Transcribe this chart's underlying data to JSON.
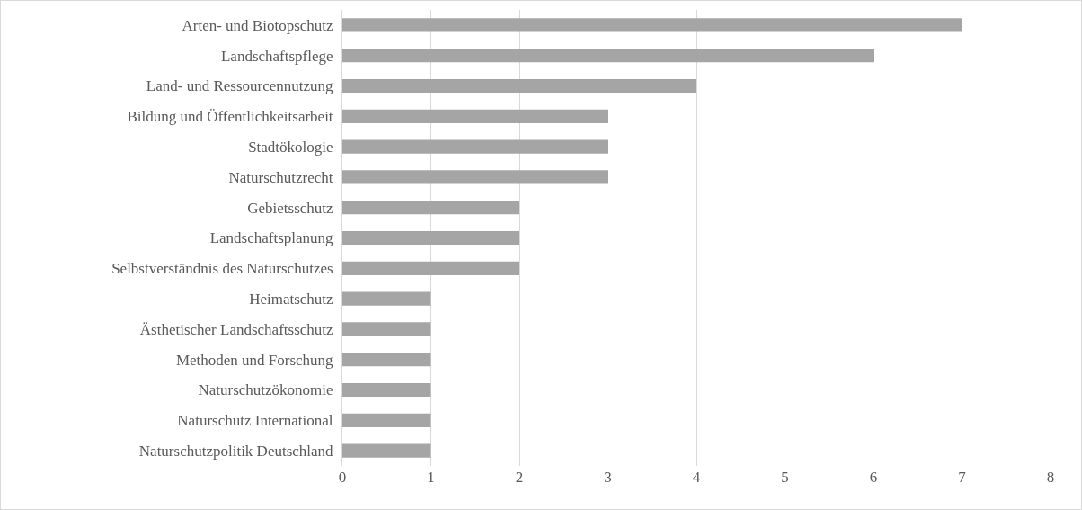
{
  "chart_data": {
    "type": "bar",
    "orientation": "horizontal",
    "categories": [
      "Arten- und Biotopschutz",
      "Landschaftspflege",
      "Land- und Ressourcennutzung",
      "Bildung und Öffentlichkeitsarbeit",
      "Stadtökologie",
      "Naturschutzrecht",
      "Gebietsschutz",
      "Landschaftsplanung",
      "Selbstverständnis des Naturschutzes",
      "Heimatschutz",
      "Ästhetischer Landschaftsschutz",
      "Methoden und Forschung",
      "Naturschutzökonomie",
      "Naturschutz International",
      "Naturschutzpolitik Deutschland"
    ],
    "values": [
      7,
      6,
      4,
      3,
      3,
      3,
      2,
      2,
      2,
      1,
      1,
      1,
      1,
      1,
      1
    ],
    "color": "#a5a5a5",
    "xlim": [
      0,
      8
    ],
    "xticks": [
      0,
      1,
      2,
      3,
      4,
      5,
      6,
      7,
      8
    ],
    "grid": "x"
  }
}
